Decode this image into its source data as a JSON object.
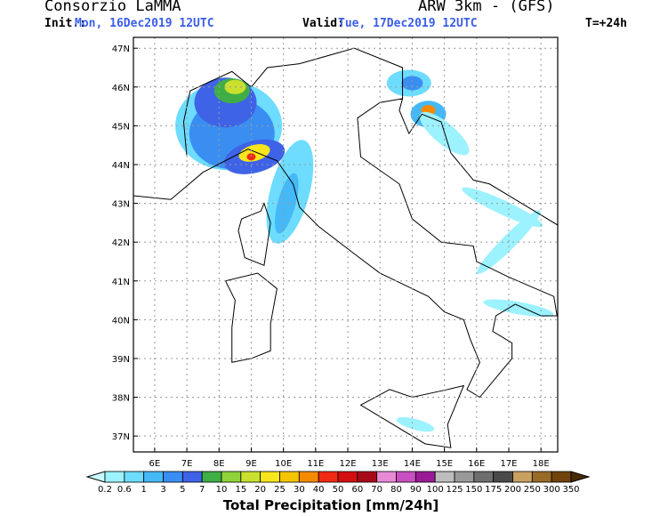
{
  "header": {
    "title": "Consorzio LaMMA",
    "model": "ARW 3km - (GFS)",
    "init_label": "Init.:",
    "init_value": "Mon, 16Dec2019 12UTC",
    "valid_label": "Valid:",
    "valid_value": "Tue, 17Dec2019 12UTC",
    "lead": "T=+24h"
  },
  "map": {
    "xlim": [
      5.34,
      18.52
    ],
    "ylim": [
      36.59,
      47.28
    ],
    "xticks": [
      {
        "value": 6,
        "label": "6E"
      },
      {
        "value": 7,
        "label": "7E"
      },
      {
        "value": 8,
        "label": "8E"
      },
      {
        "value": 9,
        "label": "9E"
      },
      {
        "value": 10,
        "label": "10E"
      },
      {
        "value": 11,
        "label": "11E"
      },
      {
        "value": 12,
        "label": "12E"
      },
      {
        "value": 13,
        "label": "13E"
      },
      {
        "value": 14,
        "label": "14E"
      },
      {
        "value": 15,
        "label": "15E"
      },
      {
        "value": 16,
        "label": "16E"
      },
      {
        "value": 17,
        "label": "17E"
      },
      {
        "value": 18,
        "label": "18E"
      }
    ],
    "yticks": [
      {
        "value": 37,
        "label": "37N"
      },
      {
        "value": 38,
        "label": "38N"
      },
      {
        "value": 39,
        "label": "39N"
      },
      {
        "value": 40,
        "label": "40N"
      },
      {
        "value": 41,
        "label": "41N"
      },
      {
        "value": 42,
        "label": "42N"
      },
      {
        "value": 43,
        "label": "43N"
      },
      {
        "value": 44,
        "label": "44N"
      },
      {
        "value": 45,
        "label": "45N"
      },
      {
        "value": 46,
        "label": "46N"
      },
      {
        "value": 47,
        "label": "47N"
      }
    ],
    "grid": true
  },
  "colorbar": {
    "label": "Total Precipitation [mm/24h]",
    "levels": [
      0.2,
      0.6,
      1,
      3,
      5,
      7,
      10,
      15,
      20,
      25,
      30,
      40,
      50,
      60,
      70,
      80,
      90,
      100,
      125,
      150,
      175,
      200,
      250,
      300,
      350
    ],
    "colors": [
      "#c8fbff",
      "#9cf2ff",
      "#6ddcff",
      "#45b8f8",
      "#3a8ef2",
      "#3f63e6",
      "#3fae46",
      "#8fd23a",
      "#c9e02e",
      "#f7e61c",
      "#f5c400",
      "#f58a00",
      "#f02a14",
      "#d30f10",
      "#a80a1a",
      "#e68ad6",
      "#c84fc0",
      "#9a1a96",
      "#bdbdbd",
      "#999999",
      "#6e6e6e",
      "#4a4a4a",
      "#c8a060",
      "#9a6a28",
      "#70420c",
      "#4a2a05"
    ]
  }
}
